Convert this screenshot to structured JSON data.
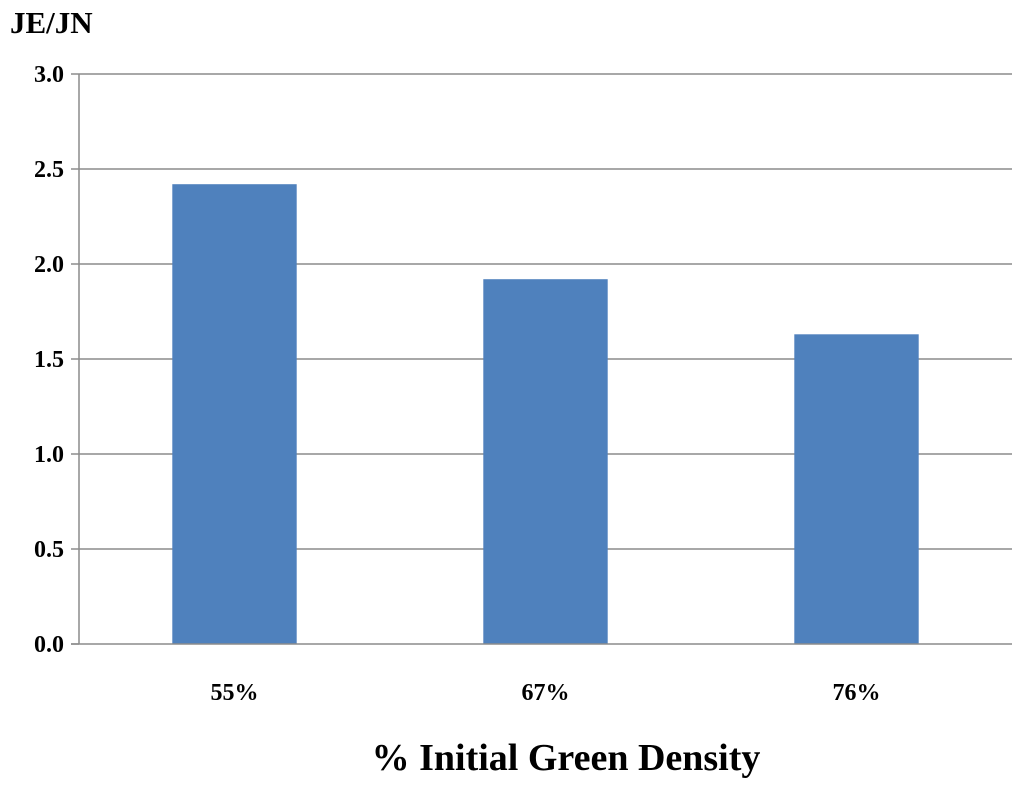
{
  "chart_data": {
    "type": "bar",
    "ylabel": "JE/JN",
    "xlabel": "% Initial Green Density",
    "categories": [
      "55%",
      "67%",
      "76%"
    ],
    "values": [
      2.42,
      1.92,
      1.63
    ],
    "ylim": [
      0,
      3.0
    ],
    "yticks": [
      "0.0",
      "0.5",
      "1.0",
      "1.5",
      "2.0",
      "2.5",
      "3.0"
    ],
    "grid": true,
    "legend": "none",
    "bar_color": "#4f81bd",
    "grid_color": "#8c8c8c"
  }
}
